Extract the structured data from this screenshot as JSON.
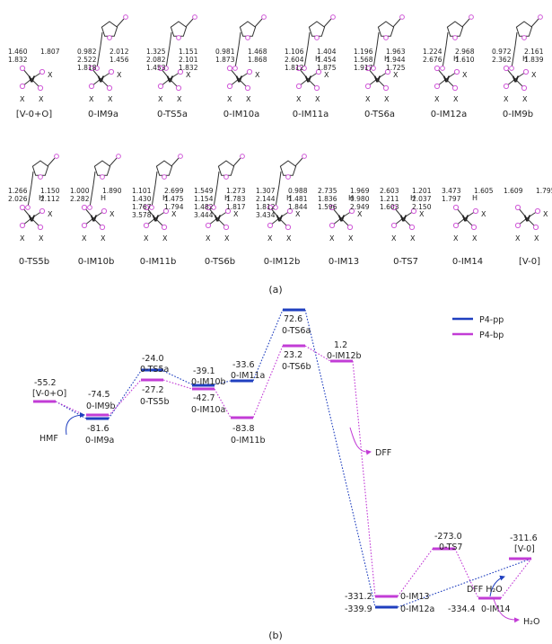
{
  "colors": {
    "pp": "#1f3fbf",
    "bp": "#c23cd6",
    "atom": "#d05ad8",
    "vanadium": "#3a55c8",
    "hydrogen": "#2ea02e"
  },
  "panel_a": {
    "label": "(a)",
    "structures": [
      {
        "name": "[V-0+O]",
        "dist": [
          "1.460",
          "1.807",
          "1.832"
        ]
      },
      {
        "name": "0-IM9a",
        "dist": [
          "0.982",
          "2.012",
          "2.522",
          "1.456",
          "1.818"
        ]
      },
      {
        "name": "0-TS5a",
        "dist": [
          "1.325",
          "1.151",
          "2.082",
          "2.101",
          "1.453",
          "1.832"
        ]
      },
      {
        "name": "0-IM10a",
        "dist": [
          "0.981",
          "1.468",
          "1.873",
          "1.868"
        ]
      },
      {
        "name": "0-IM11a",
        "dist": [
          "1.106",
          "1.404",
          "2.604",
          "1.454",
          "1.812",
          "1.875"
        ]
      },
      {
        "name": "0-TS6a",
        "dist": [
          "1.196",
          "1.963",
          "1.568",
          "1.944",
          "1.917",
          "1.725"
        ]
      },
      {
        "name": "0-IM12a",
        "dist": [
          "1.224",
          "2.968",
          "2.676",
          "1.610"
        ]
      },
      {
        "name": "0-IM9b",
        "dist": [
          "0.972",
          "2.161",
          "2.362",
          "1.839"
        ]
      },
      {
        "name": "0-TS5b",
        "dist": [
          "1.266",
          "1.150",
          "2.026",
          "2.112"
        ]
      },
      {
        "name": "0-IM10b",
        "dist": [
          "1.000",
          "1.890",
          "2.282"
        ]
      },
      {
        "name": "0-IM11b",
        "dist": [
          "1.101",
          "2.699",
          "1.430",
          "1.475",
          "1.767",
          "1.794",
          "3.578"
        ]
      },
      {
        "name": "0-TS6b",
        "dist": [
          "1.549",
          "1.273",
          "1.154",
          "1.783",
          "1.482",
          "1.817",
          "3.444"
        ]
      },
      {
        "name": "0-IM12b",
        "dist": [
          "1.307",
          "0.988",
          "2.144",
          "1.481",
          "1.812",
          "1.844",
          "3.434"
        ]
      },
      {
        "name": "0-IM13",
        "dist": [
          "2.735",
          "1.969",
          "1.836",
          "0.980",
          "1.596",
          "2.949"
        ]
      },
      {
        "name": "0-TS7",
        "dist": [
          "2.603",
          "1.201",
          "1.211",
          "2.037",
          "1.603",
          "2.150"
        ]
      },
      {
        "name": "0-IM14",
        "dist": [
          "3.473",
          "1.605",
          "1.797"
        ]
      },
      {
        "name": "[V-0]",
        "dist": [
          "1.609",
          "1.795"
        ]
      }
    ]
  },
  "panel_b": {
    "label": "(b)",
    "legend": [
      {
        "name": "P4-pp",
        "color": "#1f3fbf"
      },
      {
        "name": "P4-bp",
        "color": "#c23cd6"
      }
    ],
    "shared": [
      {
        "name": "[V-0+O]",
        "value": "-55.2"
      }
    ],
    "pp_path": [
      {
        "name": "0-IM9a",
        "value": "-81.6"
      },
      {
        "name": "0-TS5a",
        "value": "-24.0"
      },
      {
        "name": "0-IM10a",
        "value": "-42.7"
      },
      {
        "name": "0-IM11a",
        "value": "-33.6"
      },
      {
        "name": "0-TS6a",
        "value": "72.6"
      },
      {
        "name": "0-IM12a",
        "value": "-339.9"
      },
      {
        "name": "0-IM13",
        "value": "-331.2"
      },
      {
        "name": "0-IM14",
        "value": "-334.4"
      },
      {
        "name": "[V-0]",
        "value": "-311.6"
      }
    ],
    "bp_path": [
      {
        "name": "0-IM9b",
        "value": "-74.5"
      },
      {
        "name": "0-TS5b",
        "value": "-27.2"
      },
      {
        "name": "0-IM10b",
        "value": "-39.1"
      },
      {
        "name": "0-IM11b",
        "value": "-83.8"
      },
      {
        "name": "0-TS6b",
        "value": "23.2"
      },
      {
        "name": "0-IM12b",
        "value": "1.2"
      },
      {
        "name": "0-TS7",
        "value": "-273.0"
      }
    ],
    "annotations": {
      "hmf": "HMF",
      "dff": "DFF",
      "dff_h2o": "DFF H₂O",
      "h2o": "H₂O"
    }
  }
}
